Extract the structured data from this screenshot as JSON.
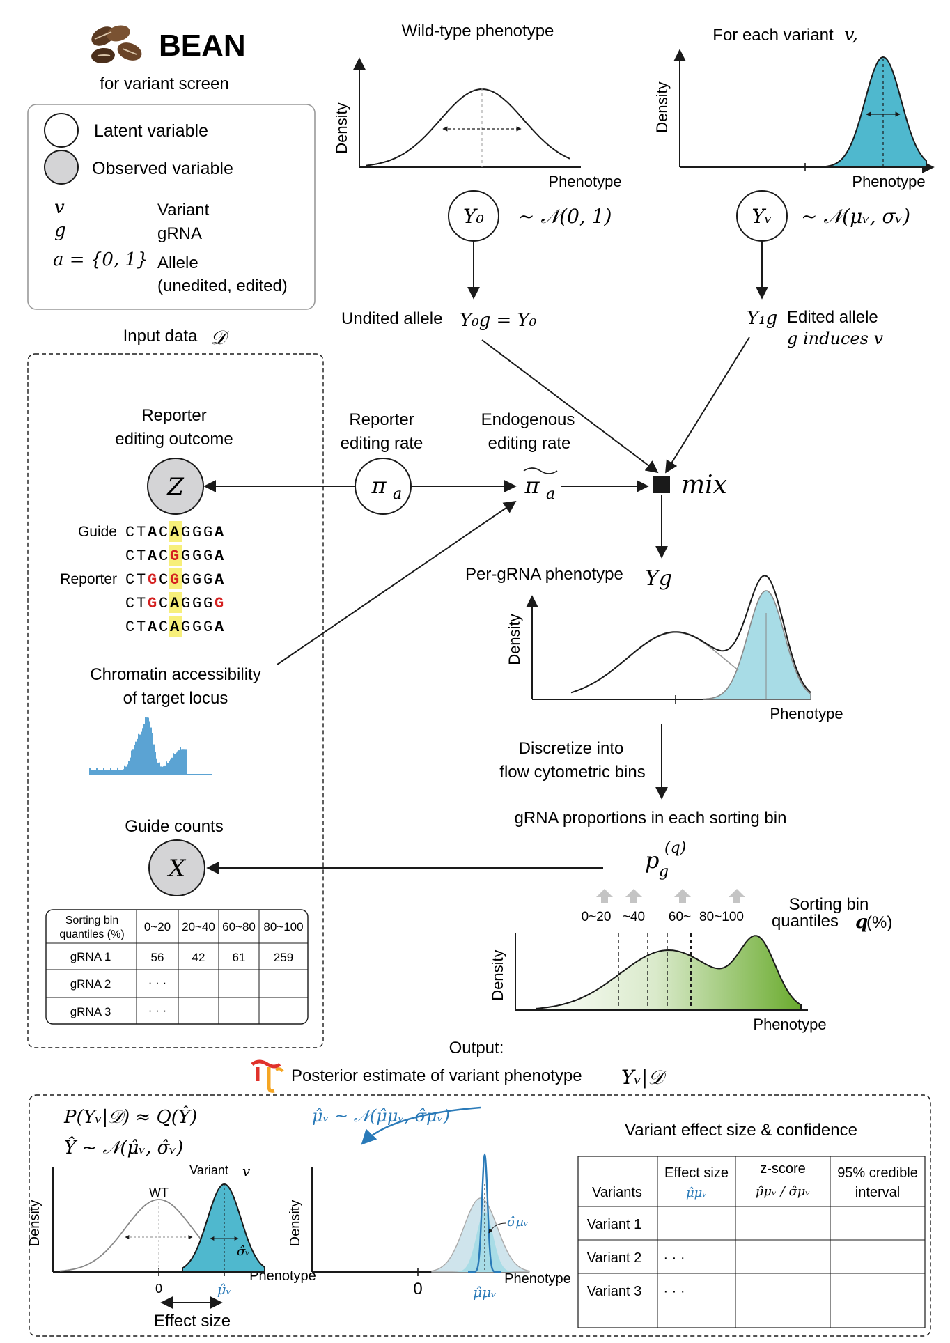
{
  "logo": {
    "title": "BEAN",
    "subtitle": "for variant screen"
  },
  "legend": {
    "latent": "Latent variable",
    "observed": "Observed variable",
    "symbols": [
      {
        "sym": "v",
        "label": "Variant"
      },
      {
        "sym": "g",
        "label": "gRNA"
      },
      {
        "sym": "a = {0, 1}",
        "label": "Allele",
        "label2": "(unedited, edited)"
      }
    ]
  },
  "top": {
    "wt_title": "Wild-type phenotype",
    "variant_title": "For each variant",
    "variant_title_sym": "v,",
    "density": "Density",
    "phenotype": "Phenotype",
    "y0": "Y₀",
    "y0_dist": "~ 𝒩(0, 1)",
    "yv": "Yᵥ",
    "yv_dist": "~ 𝒩(μᵥ, σᵥ)",
    "unedited_label": "Undited allele",
    "unedited_eq": "Y₀g = Y₀",
    "edited_sym": "Y₁g",
    "edited_label": "Edited allele",
    "edited_sub": "g induces v"
  },
  "middle": {
    "input_data": "Input data",
    "input_sym": "𝒟",
    "reporter_outcome_1": "Reporter",
    "reporter_outcome_2": "editing outcome",
    "z": "Z",
    "reporter_rate_1": "Reporter",
    "reporter_rate_2": "editing rate",
    "pi_a": "π",
    "pi_sub": "a",
    "endo_rate_1": "Endogenous",
    "endo_rate_2": "editing rate",
    "mix": "mix",
    "guide_label": "Guide",
    "reporter_label": "Reporter",
    "sequences": [
      {
        "row": "guide",
        "chars": [
          [
            "C",
            "n"
          ],
          [
            "T",
            "n"
          ],
          [
            "A",
            "b"
          ],
          [
            "C",
            "n"
          ],
          [
            "A",
            "bh"
          ],
          [
            "G",
            "n"
          ],
          [
            "G",
            "n"
          ],
          [
            "G",
            "n"
          ],
          [
            "A",
            "b"
          ]
        ]
      },
      {
        "row": "ref",
        "chars": [
          [
            "C",
            "n"
          ],
          [
            "T",
            "n"
          ],
          [
            "A",
            "b"
          ],
          [
            "C",
            "n"
          ],
          [
            "G",
            "rh"
          ],
          [
            "G",
            "n"
          ],
          [
            "G",
            "n"
          ],
          [
            "G",
            "n"
          ],
          [
            "A",
            "b"
          ]
        ]
      },
      {
        "row": "reporter",
        "chars": [
          [
            "C",
            "n"
          ],
          [
            "T",
            "n"
          ],
          [
            "G",
            "r"
          ],
          [
            "C",
            "n"
          ],
          [
            "G",
            "rh"
          ],
          [
            "G",
            "n"
          ],
          [
            "G",
            "n"
          ],
          [
            "G",
            "n"
          ],
          [
            "A",
            "b"
          ]
        ]
      },
      {
        "row": "r2",
        "chars": [
          [
            "C",
            "n"
          ],
          [
            "T",
            "n"
          ],
          [
            "G",
            "r"
          ],
          [
            "C",
            "n"
          ],
          [
            "A",
            "bh"
          ],
          [
            "G",
            "n"
          ],
          [
            "G",
            "n"
          ],
          [
            "G",
            "n"
          ],
          [
            "G",
            "r"
          ]
        ]
      },
      {
        "row": "r3",
        "chars": [
          [
            "C",
            "n"
          ],
          [
            "T",
            "n"
          ],
          [
            "A",
            "b"
          ],
          [
            "C",
            "n"
          ],
          [
            "A",
            "bh"
          ],
          [
            "G",
            "n"
          ],
          [
            "G",
            "n"
          ],
          [
            "G",
            "n"
          ],
          [
            "A",
            "b"
          ]
        ]
      }
    ],
    "chromatin_1": "Chromatin accessibility",
    "chromatin_2": "of target locus",
    "per_grna": "Per-gRNA phenotype",
    "per_grna_sym": "Yg",
    "discretize_1": "Discretize into",
    "discretize_2": "flow cytometric bins",
    "proportions": "gRNA proportions in each sorting bin",
    "pgq": "p",
    "guide_counts": "Guide counts",
    "x": "X",
    "sorting_bin_1": "Sorting bin",
    "sorting_bin_2": "quantiles",
    "sorting_bin_q": "q",
    "sorting_bin_pct": "(%)",
    "bin_labels": [
      "0~20",
      "~40",
      "60~",
      "80~100"
    ]
  },
  "count_table": {
    "header": [
      "Sorting bin quantiles (%)",
      "0~20",
      "20~40",
      "60~80",
      "80~100"
    ],
    "rows": [
      [
        "gRNA 1",
        "56",
        "42",
        "61",
        "259"
      ],
      [
        "gRNA 2",
        "· · ·",
        "",
        "",
        ""
      ],
      [
        "gRNA 3",
        "· · ·",
        "",
        "",
        ""
      ]
    ]
  },
  "output": {
    "title": "Output:",
    "posterior": "Posterior estimate of variant phenotype",
    "posterior_sym": "Yᵥ|𝒟",
    "eq1": "P(Yᵥ|𝒟)  ≈ Q(Ŷ)",
    "eq2": "Ŷ ~ 𝒩(μ̂ᵥ, σ̂ᵥ)",
    "wt": "WT",
    "variant": "Variant",
    "variant_sym": "v",
    "zero": "0",
    "mu_v": "μ̂ᵥ",
    "sigma_v": "σ̂ᵥ",
    "effect_size": "Effect size",
    "mu_dist": "μ̂ᵥ ~ 𝒩(μ̂μᵥ, σ̂μᵥ)",
    "mu_mu": "μ̂μᵥ",
    "sigma_mu": "σ̂μᵥ",
    "table_title": "Variant effect size & confidence"
  },
  "effect_table": {
    "header": [
      "Variants",
      "Effect size",
      "z-score",
      "95% credible interval"
    ],
    "header_sub": [
      "",
      "μ̂μᵥ",
      "μ̂μᵥ / σ̂μᵥ",
      ""
    ],
    "rows": [
      [
        "Variant 1",
        "",
        "",
        ""
      ],
      [
        "Variant 2",
        "· · ·",
        "",
        ""
      ],
      [
        "Variant 3",
        "· · ·",
        "",
        ""
      ]
    ]
  },
  "colors": {
    "teal": "#4fb8ce",
    "teal_light": "#a8dce6",
    "green": "#6aab2e",
    "blue_text": "#2a7ab8",
    "chromatin": "#5ba3d3",
    "red": "#d42020",
    "highlight": "#f7ef7a",
    "gray_node": "#d4d4d6"
  }
}
